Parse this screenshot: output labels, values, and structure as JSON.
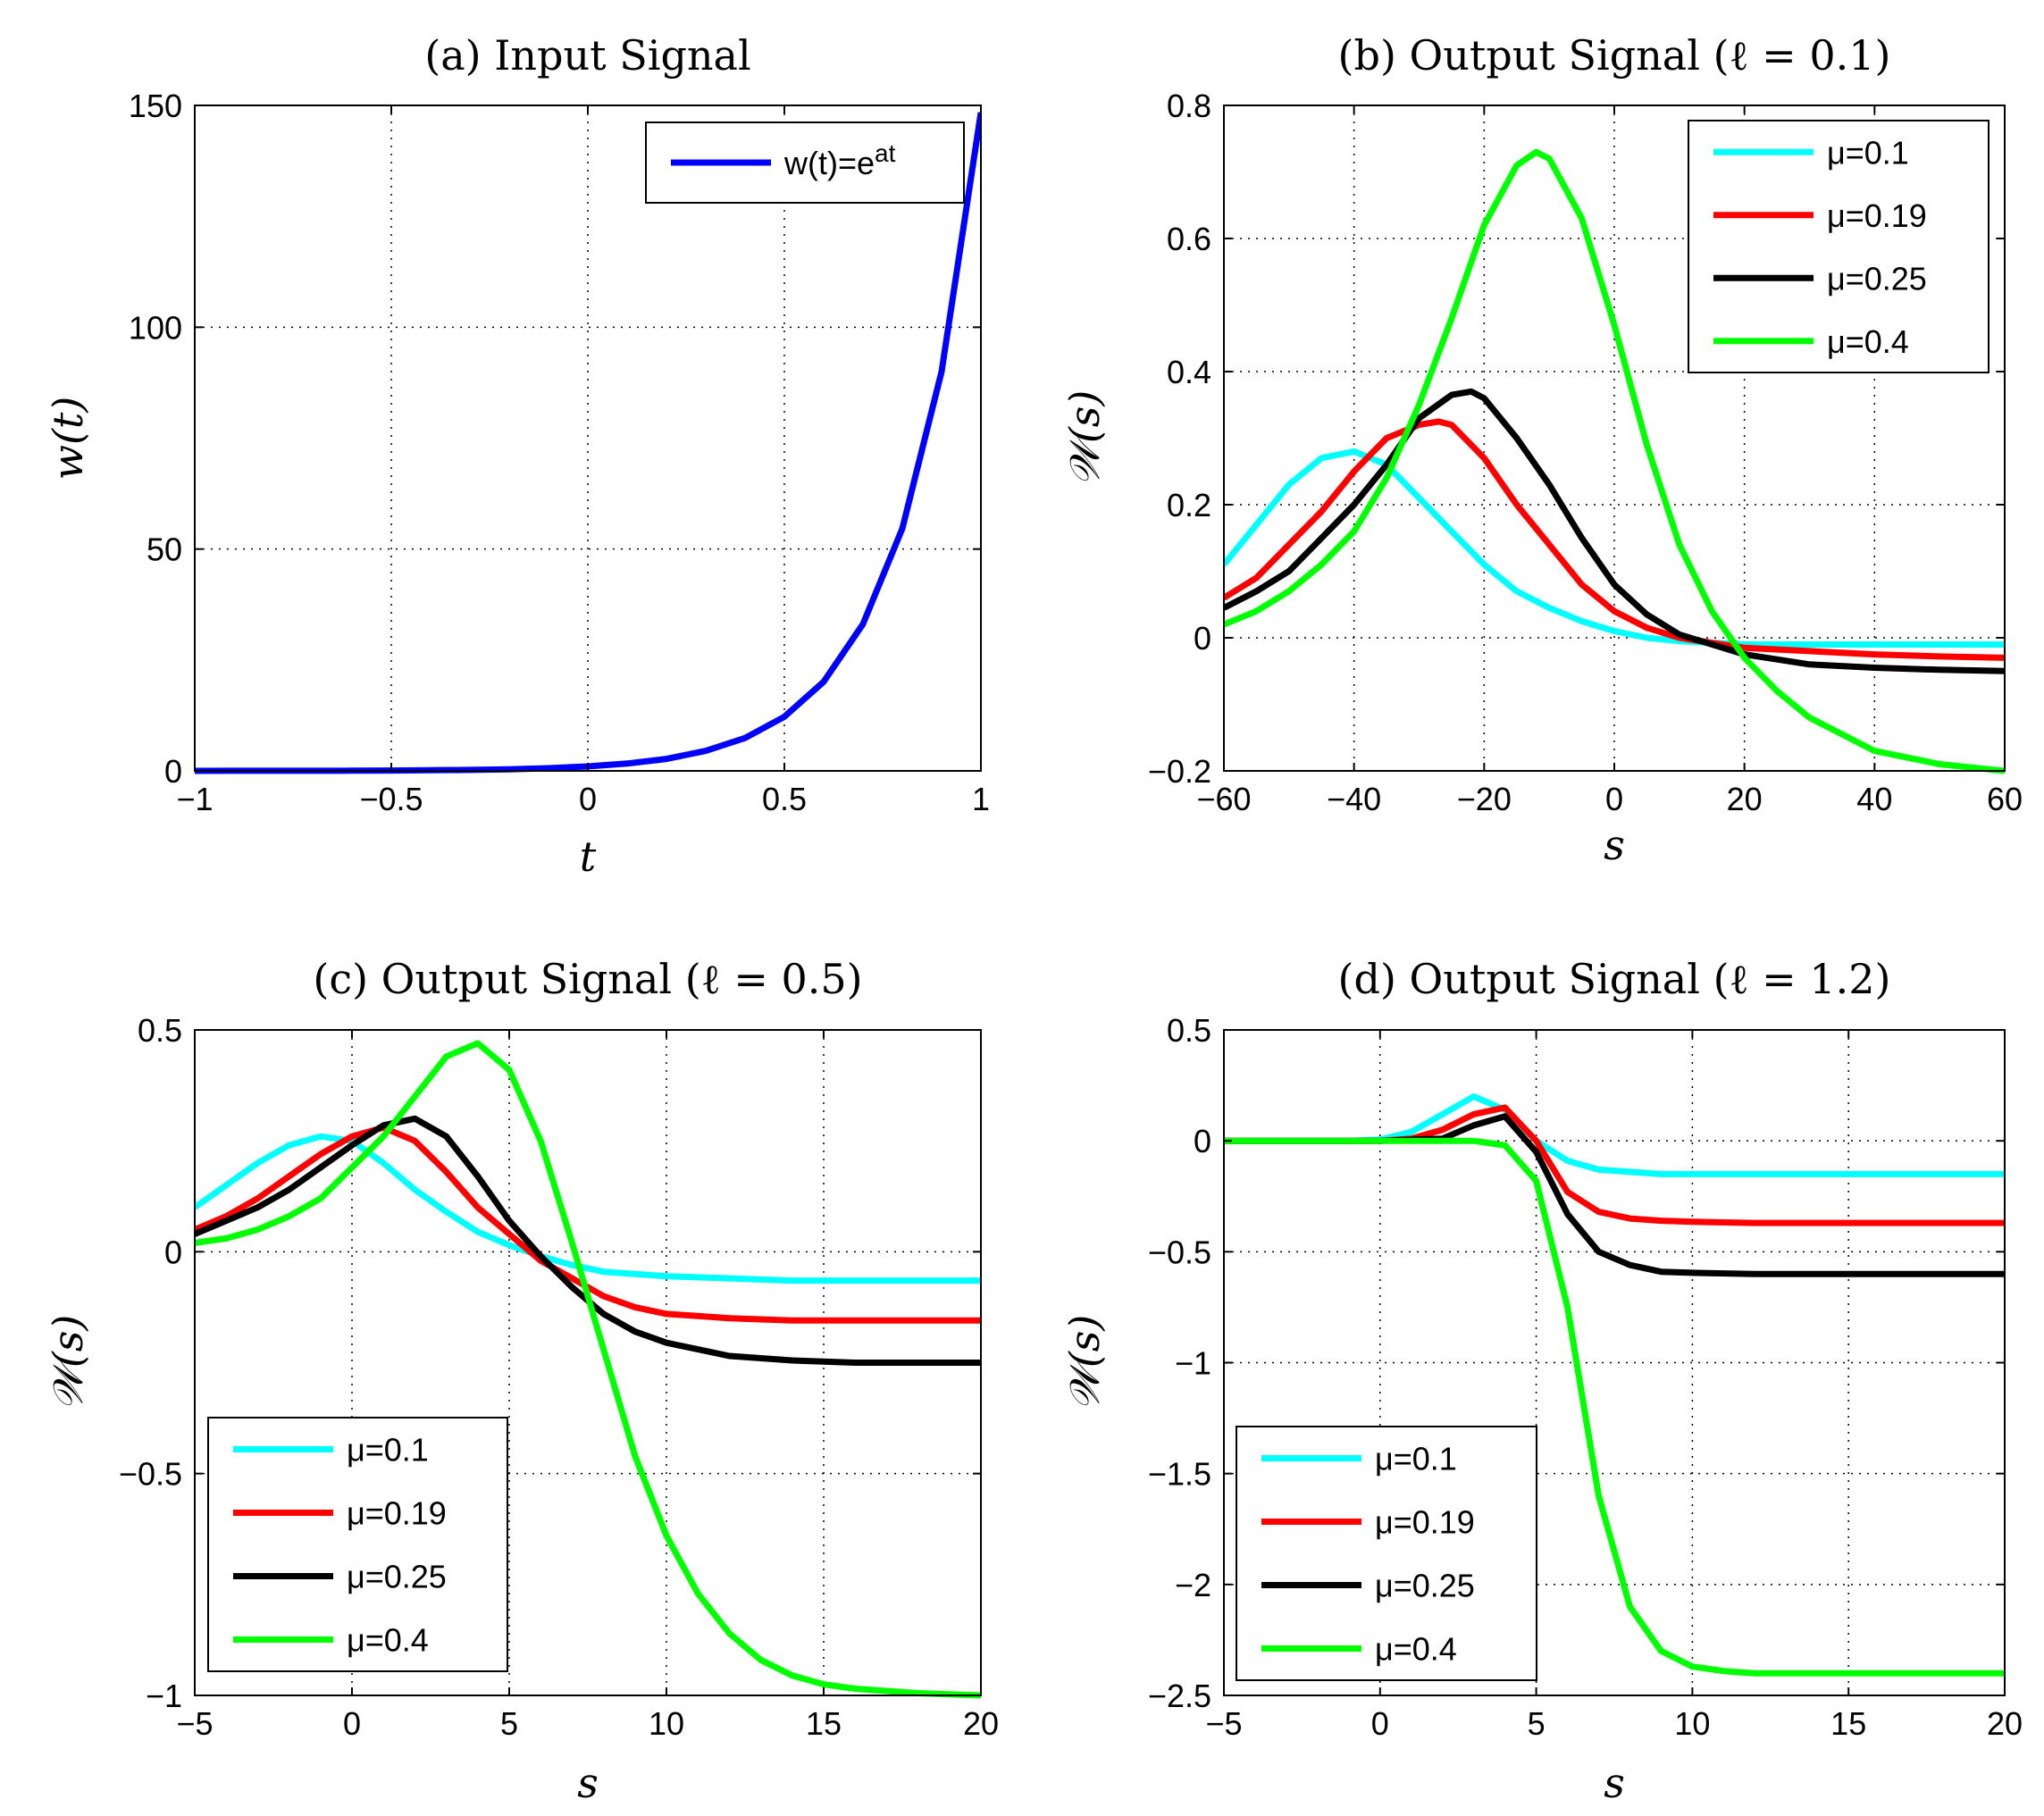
{
  "chart_data": [
    {
      "id": "a",
      "type": "line",
      "title": "(a) Input Signal",
      "xlabel": "t",
      "ylabel": "w(t)",
      "xlim": [
        -1,
        1
      ],
      "ylim": [
        0,
        150
      ],
      "xticks": [
        -1,
        -0.5,
        0,
        0.5,
        1
      ],
      "xtick_labels": [
        "−1",
        "−0.5",
        "0",
        "0.5",
        "1"
      ],
      "yticks": [
        0,
        50,
        100,
        150
      ],
      "ytick_labels": [
        "0",
        "50",
        "100",
        "150"
      ],
      "grid": true,
      "legend_position": "top-right",
      "series": [
        {
          "name": "w(t)=e^at",
          "legend_base": "w(t)=e",
          "legend_sup": "at",
          "color": "#0000ff",
          "x": [
            -1,
            -0.9,
            -0.8,
            -0.7,
            -0.6,
            -0.5,
            -0.4,
            -0.3,
            -0.2,
            -0.1,
            0,
            0.1,
            0.2,
            0.3,
            0.4,
            0.5,
            0.6,
            0.7,
            0.8,
            0.9,
            1
          ],
          "y": [
            0.007,
            0.011,
            0.018,
            0.03,
            0.05,
            0.08,
            0.14,
            0.22,
            0.37,
            0.61,
            1.0,
            1.65,
            2.7,
            4.5,
            7.4,
            12.2,
            20.1,
            33.1,
            54.6,
            90.0,
            148.4
          ]
        }
      ]
    },
    {
      "id": "b",
      "type": "line",
      "title": "(b) Output Signal (ℓ = 0.1)",
      "xlabel": "s",
      "ylabel": "𝒲(s)",
      "xlim": [
        -60,
        60
      ],
      "ylim": [
        -0.2,
        0.8
      ],
      "xticks": [
        -60,
        -40,
        -20,
        0,
        20,
        40,
        60
      ],
      "xtick_labels": [
        "−60",
        "−40",
        "−20",
        "0",
        "20",
        "40",
        "60"
      ],
      "yticks": [
        -0.2,
        0,
        0.2,
        0.4,
        0.6,
        0.8
      ],
      "ytick_labels": [
        "−0.2",
        "0",
        "0.2",
        "0.4",
        "0.6",
        "0.8"
      ],
      "grid": true,
      "legend_position": "top-right",
      "series": [
        {
          "name": "μ=0.1",
          "color": "#00ffff",
          "x": [
            -60,
            -55,
            -50,
            -45,
            -40,
            -35,
            -30,
            -25,
            -20,
            -15,
            -10,
            -5,
            0,
            5,
            10,
            20,
            30,
            40,
            50,
            60
          ],
          "y": [
            0.11,
            0.17,
            0.23,
            0.27,
            0.28,
            0.26,
            0.21,
            0.16,
            0.11,
            0.07,
            0.045,
            0.025,
            0.01,
            0.0,
            -0.005,
            -0.01,
            -0.01,
            -0.01,
            -0.01,
            -0.01
          ]
        },
        {
          "name": "μ=0.19",
          "color": "#ff0000",
          "x": [
            -60,
            -55,
            -50,
            -45,
            -40,
            -35,
            -30,
            -27,
            -25,
            -20,
            -15,
            -10,
            -5,
            0,
            5,
            10,
            20,
            30,
            40,
            50,
            60
          ],
          "y": [
            0.06,
            0.09,
            0.14,
            0.19,
            0.25,
            0.3,
            0.32,
            0.325,
            0.32,
            0.27,
            0.2,
            0.14,
            0.08,
            0.04,
            0.015,
            0.0,
            -0.015,
            -0.02,
            -0.025,
            -0.028,
            -0.03
          ]
        },
        {
          "name": "μ=0.25",
          "color": "#000000",
          "x": [
            -60,
            -55,
            -50,
            -45,
            -40,
            -35,
            -30,
            -25,
            -22,
            -20,
            -15,
            -10,
            -5,
            0,
            5,
            10,
            20,
            30,
            40,
            50,
            60
          ],
          "y": [
            0.045,
            0.07,
            0.1,
            0.15,
            0.2,
            0.26,
            0.33,
            0.365,
            0.37,
            0.36,
            0.3,
            0.23,
            0.15,
            0.08,
            0.035,
            0.005,
            -0.025,
            -0.04,
            -0.045,
            -0.048,
            -0.05
          ]
        },
        {
          "name": "μ=0.4",
          "color": "#00ff00",
          "x": [
            -60,
            -55,
            -50,
            -45,
            -40,
            -35,
            -30,
            -25,
            -20,
            -15,
            -12,
            -10,
            -5,
            0,
            5,
            10,
            15,
            20,
            25,
            30,
            40,
            50,
            60
          ],
          "y": [
            0.02,
            0.04,
            0.07,
            0.11,
            0.16,
            0.24,
            0.35,
            0.48,
            0.62,
            0.71,
            0.73,
            0.72,
            0.63,
            0.47,
            0.29,
            0.14,
            0.04,
            -0.03,
            -0.08,
            -0.12,
            -0.17,
            -0.19,
            -0.2
          ]
        }
      ]
    },
    {
      "id": "c",
      "type": "line",
      "title": "(c) Output Signal (ℓ = 0.5)",
      "xlabel": "s",
      "ylabel": "𝒲(s)",
      "xlim": [
        -5,
        20
      ],
      "ylim": [
        -1,
        0.5
      ],
      "xticks": [
        -5,
        0,
        5,
        10,
        15,
        20
      ],
      "xtick_labels": [
        "−5",
        "0",
        "5",
        "10",
        "15",
        "20"
      ],
      "yticks": [
        -1,
        -0.5,
        0,
        0.5
      ],
      "ytick_labels": [
        "−1",
        "−0.5",
        "0",
        "0.5"
      ],
      "grid": true,
      "legend_position": "bottom-left",
      "series": [
        {
          "name": "μ=0.1",
          "color": "#00ffff",
          "x": [
            -5,
            -4,
            -3,
            -2,
            -1,
            0,
            1,
            2,
            3,
            4,
            5,
            6,
            7,
            8,
            9,
            10,
            12,
            14,
            16,
            18,
            20
          ],
          "y": [
            0.1,
            0.15,
            0.2,
            0.24,
            0.26,
            0.25,
            0.2,
            0.14,
            0.09,
            0.045,
            0.015,
            -0.01,
            -0.03,
            -0.045,
            -0.05,
            -0.055,
            -0.06,
            -0.065,
            -0.065,
            -0.065,
            -0.065
          ]
        },
        {
          "name": "μ=0.19",
          "color": "#ff0000",
          "x": [
            -5,
            -4,
            -3,
            -2,
            -1,
            0,
            1,
            2,
            3,
            4,
            5,
            6,
            7,
            8,
            9,
            10,
            11,
            12,
            14,
            16,
            18,
            20
          ],
          "y": [
            0.05,
            0.08,
            0.12,
            0.17,
            0.22,
            0.26,
            0.28,
            0.25,
            0.18,
            0.1,
            0.04,
            -0.02,
            -0.06,
            -0.1,
            -0.125,
            -0.14,
            -0.145,
            -0.15,
            -0.155,
            -0.155,
            -0.155,
            -0.155
          ]
        },
        {
          "name": "μ=0.25",
          "color": "#000000",
          "x": [
            -5,
            -4,
            -3,
            -2,
            -1,
            0,
            1,
            2,
            3,
            4,
            5,
            6,
            7,
            8,
            9,
            10,
            11,
            12,
            14,
            16,
            18,
            20
          ],
          "y": [
            0.04,
            0.07,
            0.1,
            0.14,
            0.19,
            0.24,
            0.285,
            0.3,
            0.26,
            0.17,
            0.07,
            -0.01,
            -0.08,
            -0.14,
            -0.18,
            -0.205,
            -0.22,
            -0.235,
            -0.245,
            -0.25,
            -0.25,
            -0.25
          ]
        },
        {
          "name": "μ=0.4",
          "color": "#00ff00",
          "x": [
            -5,
            -4,
            -3,
            -2,
            -1,
            0,
            1,
            2,
            3,
            4,
            5,
            6,
            7,
            8,
            9,
            10,
            11,
            12,
            13,
            14,
            15,
            16,
            17,
            18,
            20
          ],
          "y": [
            0.02,
            0.03,
            0.05,
            0.08,
            0.12,
            0.19,
            0.26,
            0.35,
            0.44,
            0.47,
            0.41,
            0.25,
            0.02,
            -0.22,
            -0.46,
            -0.64,
            -0.77,
            -0.86,
            -0.92,
            -0.955,
            -0.975,
            -0.985,
            -0.99,
            -0.995,
            -1.0
          ]
        }
      ]
    },
    {
      "id": "d",
      "type": "line",
      "title": "(d) Output Signal (ℓ = 1.2)",
      "xlabel": "s",
      "ylabel": "𝒲(s)",
      "xlim": [
        -5,
        20
      ],
      "ylim": [
        -2.5,
        0.5
      ],
      "xticks": [
        -5,
        0,
        5,
        10,
        15,
        20
      ],
      "xtick_labels": [
        "−5",
        "0",
        "5",
        "10",
        "15",
        "20"
      ],
      "yticks": [
        -2.5,
        -2,
        -1.5,
        -1,
        -0.5,
        0,
        0.5
      ],
      "ytick_labels": [
        "−2.5",
        "−2",
        "−1.5",
        "−1",
        "−0.5",
        "0",
        "0.5"
      ],
      "grid": true,
      "legend_position": "bottom-left",
      "series": [
        {
          "name": "μ=0.1",
          "color": "#00ffff",
          "x": [
            -5,
            -1,
            0,
            1,
            2,
            3,
            4,
            5,
            6,
            7,
            8,
            9,
            10,
            12,
            15,
            20
          ],
          "y": [
            0,
            0,
            0.005,
            0.04,
            0.12,
            0.2,
            0.14,
            0.0,
            -0.09,
            -0.13,
            -0.14,
            -0.15,
            -0.15,
            -0.15,
            -0.15,
            -0.15
          ]
        },
        {
          "name": "μ=0.19",
          "color": "#ff0000",
          "x": [
            -5,
            0,
            1,
            2,
            3,
            4,
            5,
            6,
            7,
            8,
            9,
            10,
            12,
            15,
            20
          ],
          "y": [
            0,
            0,
            0.01,
            0.05,
            0.12,
            0.15,
            0.0,
            -0.23,
            -0.32,
            -0.35,
            -0.36,
            -0.365,
            -0.37,
            -0.37,
            -0.37
          ]
        },
        {
          "name": "μ=0.25",
          "color": "#000000",
          "x": [
            -5,
            0,
            1,
            2,
            3,
            4,
            5,
            6,
            7,
            8,
            9,
            10,
            12,
            15,
            20
          ],
          "y": [
            0,
            0,
            0.005,
            0.01,
            0.07,
            0.11,
            -0.05,
            -0.33,
            -0.5,
            -0.56,
            -0.59,
            -0.595,
            -0.6,
            -0.6,
            -0.6
          ]
        },
        {
          "name": "μ=0.4",
          "color": "#00ff00",
          "x": [
            -5,
            0,
            3,
            4,
            5,
            6,
            7,
            8,
            9,
            10,
            11,
            12,
            15,
            20
          ],
          "y": [
            0,
            0,
            0,
            -0.02,
            -0.18,
            -0.75,
            -1.6,
            -2.1,
            -2.3,
            -2.37,
            -2.39,
            -2.4,
            -2.4,
            -2.4
          ]
        }
      ]
    }
  ]
}
